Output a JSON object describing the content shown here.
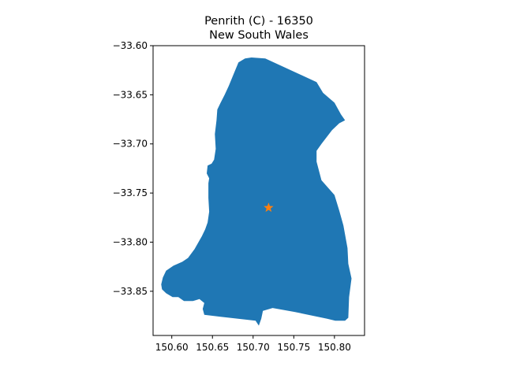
{
  "title": {
    "line1": "Penrith (C) - 16350",
    "line2": "New South Wales"
  },
  "chart_data": {
    "type": "map",
    "title": "Penrith (C) - 16350\nNew South Wales",
    "region_color": "#1f77b4",
    "marker": {
      "symbol": "star",
      "color": "#ff7f0e",
      "x": 150.719,
      "y": -33.765
    },
    "xlim": [
      150.577,
      150.837
    ],
    "ylim": [
      -33.895,
      -33.6
    ],
    "x_ticks": [
      150.6,
      150.65,
      150.7,
      150.75,
      150.8
    ],
    "x_tick_labels": [
      "150.60",
      "150.65",
      "150.70",
      "150.75",
      "150.80"
    ],
    "y_ticks": [
      -33.6,
      -33.65,
      -33.7,
      -33.75,
      -33.8,
      -33.85
    ],
    "y_tick_labels": [
      "−33.60",
      "−33.65",
      "−33.70",
      "−33.75",
      "−33.80",
      "−33.85"
    ],
    "region_outline": [
      [
        150.698,
        -33.612
      ],
      [
        150.715,
        -33.613
      ],
      [
        150.778,
        -33.637
      ],
      [
        150.786,
        -33.648
      ],
      [
        150.8,
        -33.658
      ],
      [
        150.808,
        -33.67
      ],
      [
        150.813,
        -33.676
      ],
      [
        150.806,
        -33.679
      ],
      [
        150.797,
        -33.686
      ],
      [
        150.784,
        -33.7
      ],
      [
        150.778,
        -33.707
      ],
      [
        150.778,
        -33.718
      ],
      [
        150.784,
        -33.737
      ],
      [
        150.8,
        -33.752
      ],
      [
        150.806,
        -33.768
      ],
      [
        150.811,
        -33.783
      ],
      [
        150.816,
        -33.806
      ],
      [
        150.817,
        -33.822
      ],
      [
        150.821,
        -33.837
      ],
      [
        150.818,
        -33.856
      ],
      [
        150.817,
        -33.877
      ],
      [
        150.813,
        -33.88
      ],
      [
        150.801,
        -33.88
      ],
      [
        150.791,
        -33.878
      ],
      [
        150.751,
        -33.871
      ],
      [
        150.724,
        -33.867
      ],
      [
        150.712,
        -33.87
      ],
      [
        150.71,
        -33.878
      ],
      [
        150.707,
        -33.885
      ],
      [
        150.703,
        -33.88
      ],
      [
        150.66,
        -33.876
      ],
      [
        150.64,
        -33.874
      ],
      [
        150.638,
        -33.868
      ],
      [
        150.64,
        -33.862
      ],
      [
        150.634,
        -33.858
      ],
      [
        150.626,
        -33.86
      ],
      [
        150.615,
        -33.86
      ],
      [
        150.608,
        -33.856
      ],
      [
        150.601,
        -33.856
      ],
      [
        150.593,
        -33.852
      ],
      [
        150.588,
        -33.848
      ],
      [
        150.587,
        -33.843
      ],
      [
        150.589,
        -33.836
      ],
      [
        150.593,
        -33.829
      ],
      [
        150.602,
        -33.824
      ],
      [
        150.613,
        -33.82
      ],
      [
        150.62,
        -33.816
      ],
      [
        150.628,
        -33.807
      ],
      [
        150.637,
        -33.794
      ],
      [
        150.641,
        -33.787
      ],
      [
        150.644,
        -33.78
      ],
      [
        150.646,
        -33.769
      ],
      [
        150.645,
        -33.755
      ],
      [
        150.645,
        -33.74
      ],
      [
        150.646,
        -33.735
      ],
      [
        150.643,
        -33.73
      ],
      [
        150.644,
        -33.722
      ],
      [
        150.649,
        -33.72
      ],
      [
        150.652,
        -33.716
      ],
      [
        150.654,
        -33.705
      ],
      [
        150.653,
        -33.69
      ],
      [
        150.655,
        -33.676
      ],
      [
        150.656,
        -33.665
      ],
      [
        150.66,
        -33.658
      ],
      [
        150.665,
        -33.65
      ],
      [
        150.67,
        -33.641
      ],
      [
        150.676,
        -33.629
      ],
      [
        150.682,
        -33.617
      ],
      [
        150.69,
        -33.613
      ]
    ]
  }
}
